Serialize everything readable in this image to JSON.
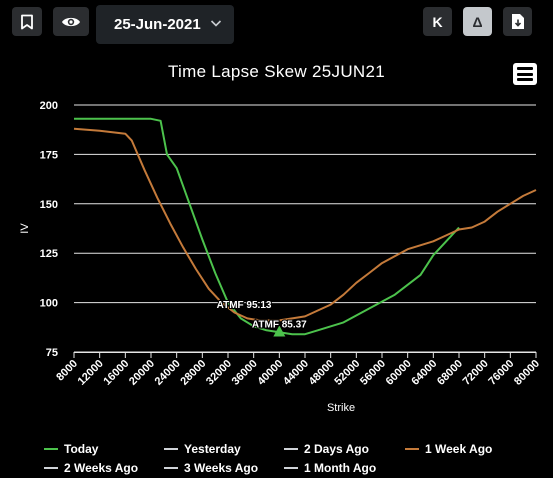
{
  "toolbar": {
    "date_value": "25-Jun-2021",
    "k_label": "K",
    "delta_label": "Δ",
    "icons": [
      "bookmark-icon",
      "eye-icon",
      "chevron-down-icon",
      "download-file-icon",
      "hamburger-menu-icon"
    ]
  },
  "chart_data": {
    "type": "line",
    "title": "Time Lapse Skew 25JUN21",
    "xlabel": "Strike",
    "ylabel": "IV",
    "xlim": [
      8000,
      80000
    ],
    "ylim": [
      75,
      200
    ],
    "x_ticks": [
      8000,
      12000,
      16000,
      20000,
      24000,
      28000,
      32000,
      36000,
      40000,
      44000,
      48000,
      52000,
      56000,
      60000,
      64000,
      68000,
      72000,
      76000,
      80000
    ],
    "y_ticks": [
      75,
      100,
      125,
      150,
      175,
      200
    ],
    "grid": "horizontal",
    "legend_position": "bottom",
    "series": [
      {
        "name": "Today",
        "color": "#4cc24c",
        "points": [
          [
            8000,
            193
          ],
          [
            12000,
            193
          ],
          [
            16000,
            193
          ],
          [
            20000,
            193
          ],
          [
            21500,
            192
          ],
          [
            22500,
            175
          ],
          [
            24000,
            168
          ],
          [
            26000,
            150
          ],
          [
            28000,
            132
          ],
          [
            30000,
            115
          ],
          [
            32000,
            100
          ],
          [
            34000,
            92
          ],
          [
            36000,
            88
          ],
          [
            38000,
            86
          ],
          [
            40000,
            85
          ],
          [
            42000,
            84
          ],
          [
            44000,
            84
          ],
          [
            46000,
            86
          ],
          [
            50000,
            90
          ],
          [
            54000,
            97
          ],
          [
            58000,
            104
          ],
          [
            62000,
            114
          ],
          [
            64000,
            124
          ],
          [
            66000,
            131
          ],
          [
            68000,
            138
          ]
        ]
      },
      {
        "name": "Yesterday",
        "color": "#cfd3d7",
        "points": []
      },
      {
        "name": "2 Days Ago",
        "color": "#cfd3d7",
        "points": []
      },
      {
        "name": "1 Week Ago",
        "color": "#c47a3a",
        "points": [
          [
            8000,
            188
          ],
          [
            12000,
            187
          ],
          [
            16000,
            185.5
          ],
          [
            17000,
            182
          ],
          [
            19000,
            167
          ],
          [
            21000,
            153
          ],
          [
            23000,
            140
          ],
          [
            25000,
            128
          ],
          [
            27000,
            117
          ],
          [
            29000,
            107
          ],
          [
            31000,
            100
          ],
          [
            33000,
            95
          ],
          [
            35000,
            92
          ],
          [
            37000,
            91
          ],
          [
            40000,
            91
          ],
          [
            42000,
            92
          ],
          [
            44000,
            93
          ],
          [
            46000,
            96
          ],
          [
            48000,
            99
          ],
          [
            50000,
            104
          ],
          [
            52000,
            110
          ],
          [
            54000,
            115
          ],
          [
            56000,
            120
          ],
          [
            60000,
            127
          ],
          [
            64000,
            131
          ],
          [
            66000,
            134
          ],
          [
            68000,
            137
          ],
          [
            70000,
            138
          ],
          [
            72000,
            141
          ],
          [
            74000,
            146
          ],
          [
            76000,
            150
          ],
          [
            78000,
            154
          ],
          [
            80000,
            157
          ]
        ]
      },
      {
        "name": "2 Weeks Ago",
        "color": "#cfd3d7",
        "points": []
      },
      {
        "name": "3 Weeks Ago",
        "color": "#cfd3d7",
        "points": []
      },
      {
        "name": "1 Month Ago",
        "color": "#cfd3d7",
        "points": []
      }
    ],
    "annotations": [
      {
        "label": "ATMF 95.13",
        "x": 34500,
        "y": 95.13
      },
      {
        "label": "ATMF 85.37",
        "x": 40000,
        "y": 85.37
      }
    ],
    "marker": {
      "x": 40000,
      "y": 85.37,
      "color": "#4cc24c"
    }
  }
}
